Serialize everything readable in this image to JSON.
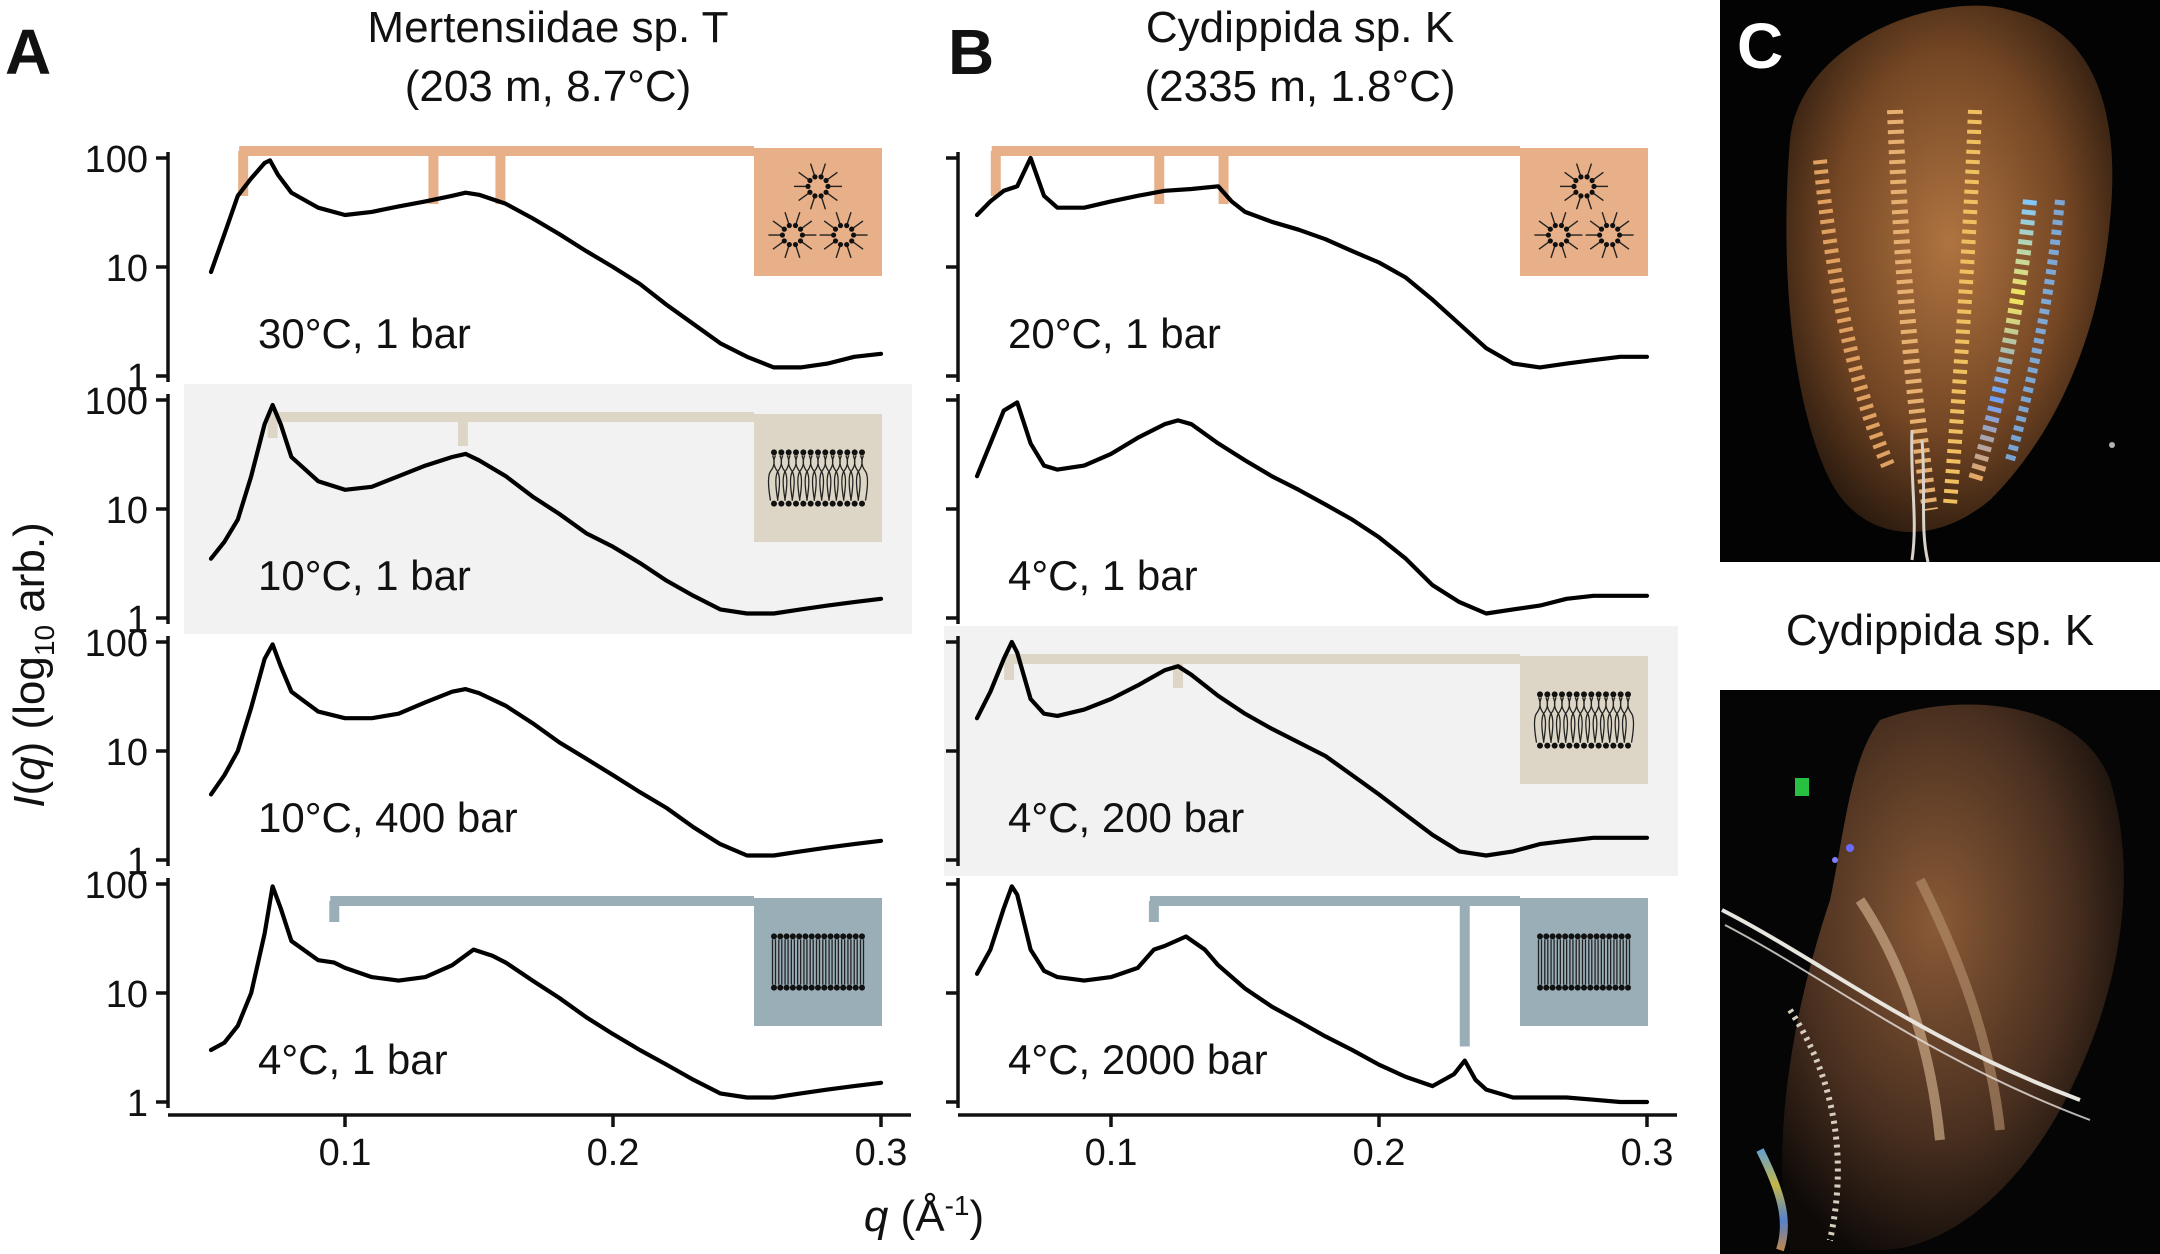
{
  "figure": {
    "panels": [
      {
        "letter": "A",
        "title_line1": "Mertensiidae sp. T",
        "title_line2": "(203 m, 8.7°C)"
      },
      {
        "letter": "B",
        "title_line1": "Cydippida sp. K",
        "title_line2": "(2335 m, 1.8°C)"
      },
      {
        "letter": "C",
        "photo_caption": "Cydippida sp. K"
      }
    ],
    "y_axis_label": {
      "italic": "I",
      "paren_q": "q",
      "log": "log",
      "sub": "10",
      "rest": "arb."
    },
    "x_axis_label": {
      "q": "q",
      "unit": "Å",
      "sup": "-1"
    },
    "colors": {
      "inverted_hexagonal": "#e8b088",
      "fluid_lamellar": "#ddd6c6",
      "gel_lamellar": "#9aaeb8",
      "highlight_band": "#f2f2f2",
      "curve": "#000000"
    }
  },
  "chart_data": [
    {
      "panel": "A",
      "type": "line",
      "xlabel": "q (Å-1)",
      "ylabel": "I(q) (log10 arb.)",
      "x_scale": "linear",
      "y_scale": "log",
      "xlim": [
        0.05,
        0.3
      ],
      "x_ticks": [
        0.1,
        0.2,
        0.3
      ],
      "x_tick_labels": [
        "0.1",
        "0.2",
        "0.3"
      ],
      "y_ticks": [
        1,
        10,
        100
      ],
      "y_tick_labels": [
        "1",
        "10",
        "100"
      ],
      "rows": [
        {
          "condition": "30°C, 1 bar",
          "phase": "inverted_hexagonal",
          "highlighted": false,
          "peak_markers_q": [
            0.062,
            0.133,
            0.158
          ],
          "x": [
            0.05,
            0.055,
            0.06,
            0.065,
            0.07,
            0.072,
            0.075,
            0.08,
            0.09,
            0.1,
            0.11,
            0.12,
            0.13,
            0.14,
            0.145,
            0.15,
            0.16,
            0.17,
            0.18,
            0.19,
            0.2,
            0.21,
            0.22,
            0.23,
            0.24,
            0.25,
            0.26,
            0.27,
            0.28,
            0.29,
            0.3
          ],
          "y": [
            9,
            20,
            45,
            65,
            90,
            95,
            70,
            48,
            35,
            30,
            32,
            36,
            40,
            45,
            48,
            46,
            38,
            28,
            20,
            14,
            10,
            7,
            4.5,
            3,
            2,
            1.5,
            1.2,
            1.2,
            1.3,
            1.5,
            1.6
          ]
        },
        {
          "condition": "10°C, 1 bar",
          "phase": "fluid_lamellar",
          "highlighted": true,
          "peak_markers_q": [
            0.073,
            0.144
          ],
          "x": [
            0.05,
            0.055,
            0.06,
            0.065,
            0.07,
            0.073,
            0.076,
            0.08,
            0.09,
            0.1,
            0.11,
            0.12,
            0.13,
            0.14,
            0.145,
            0.15,
            0.16,
            0.17,
            0.18,
            0.19,
            0.2,
            0.21,
            0.22,
            0.23,
            0.24,
            0.25,
            0.26,
            0.27,
            0.28,
            0.29,
            0.3
          ],
          "y": [
            3.5,
            5,
            8,
            20,
            60,
            90,
            60,
            30,
            18,
            15,
            16,
            20,
            25,
            30,
            32,
            28,
            20,
            13,
            9,
            6,
            4.5,
            3.2,
            2.2,
            1.6,
            1.2,
            1.1,
            1.1,
            1.2,
            1.3,
            1.4,
            1.5
          ]
        },
        {
          "condition": "10°C, 400 bar",
          "phase": "none",
          "highlighted": false,
          "peak_markers_q": [],
          "x": [
            0.05,
            0.055,
            0.06,
            0.065,
            0.07,
            0.073,
            0.076,
            0.08,
            0.09,
            0.1,
            0.11,
            0.12,
            0.13,
            0.14,
            0.145,
            0.15,
            0.16,
            0.17,
            0.18,
            0.19,
            0.2,
            0.21,
            0.22,
            0.23,
            0.24,
            0.25,
            0.26,
            0.27,
            0.28,
            0.29,
            0.3
          ],
          "y": [
            4,
            6,
            10,
            25,
            70,
            95,
            60,
            35,
            23,
            20,
            20,
            22,
            28,
            35,
            37,
            34,
            26,
            18,
            12,
            8.5,
            6,
            4.2,
            3,
            2,
            1.4,
            1.1,
            1.1,
            1.2,
            1.3,
            1.4,
            1.5
          ]
        },
        {
          "condition": "4°C, 1 bar",
          "phase": "gel_lamellar",
          "highlighted": false,
          "peak_markers_q": [
            0.096
          ],
          "x": [
            0.05,
            0.055,
            0.06,
            0.065,
            0.07,
            0.073,
            0.076,
            0.08,
            0.09,
            0.096,
            0.1,
            0.11,
            0.12,
            0.13,
            0.14,
            0.148,
            0.155,
            0.16,
            0.17,
            0.18,
            0.19,
            0.2,
            0.21,
            0.22,
            0.23,
            0.24,
            0.25,
            0.26,
            0.27,
            0.28,
            0.29,
            0.3
          ],
          "y": [
            3,
            3.5,
            5,
            10,
            35,
            95,
            60,
            30,
            20,
            19,
            17,
            14,
            13,
            14,
            18,
            25,
            22,
            19,
            13,
            9,
            6,
            4.2,
            3,
            2.2,
            1.6,
            1.2,
            1.1,
            1.1,
            1.2,
            1.3,
            1.4,
            1.5
          ]
        }
      ]
    },
    {
      "panel": "B",
      "type": "line",
      "xlabel": "q (Å-1)",
      "ylabel": "I(q) (log10 arb.)",
      "x_scale": "linear",
      "y_scale": "log",
      "xlim": [
        0.05,
        0.3
      ],
      "x_ticks": [
        0.1,
        0.2,
        0.3
      ],
      "x_tick_labels": [
        "0.1",
        "0.2",
        "0.3"
      ],
      "y_ticks": [
        1,
        10,
        100
      ],
      "y_tick_labels": [
        "1",
        "10",
        "100"
      ],
      "rows": [
        {
          "condition": "20°C, 1 bar",
          "phase": "inverted_hexagonal",
          "highlighted": false,
          "peak_markers_q": [
            0.057,
            0.118,
            0.142
          ],
          "x": [
            0.05,
            0.055,
            0.06,
            0.065,
            0.07,
            0.075,
            0.08,
            0.09,
            0.1,
            0.11,
            0.12,
            0.13,
            0.14,
            0.145,
            0.15,
            0.16,
            0.17,
            0.18,
            0.19,
            0.2,
            0.21,
            0.22,
            0.23,
            0.24,
            0.25,
            0.26,
            0.27,
            0.28,
            0.29,
            0.3
          ],
          "y": [
            30,
            40,
            50,
            55,
            100,
            45,
            35,
            35,
            40,
            45,
            50,
            52,
            55,
            40,
            32,
            26,
            22,
            18,
            14,
            11,
            8,
            5,
            3,
            1.8,
            1.3,
            1.2,
            1.3,
            1.4,
            1.5,
            1.5
          ]
        },
        {
          "condition": "4°C, 1 bar",
          "phase": "none",
          "highlighted": false,
          "peak_markers_q": [],
          "x": [
            0.05,
            0.055,
            0.06,
            0.065,
            0.07,
            0.075,
            0.08,
            0.09,
            0.1,
            0.11,
            0.12,
            0.125,
            0.13,
            0.14,
            0.15,
            0.16,
            0.17,
            0.18,
            0.19,
            0.2,
            0.21,
            0.22,
            0.23,
            0.24,
            0.25,
            0.26,
            0.27,
            0.28,
            0.29,
            0.3
          ],
          "y": [
            20,
            40,
            80,
            95,
            40,
            25,
            23,
            25,
            32,
            45,
            60,
            65,
            60,
            40,
            28,
            20,
            15,
            11,
            8,
            5.5,
            3.5,
            2,
            1.4,
            1.1,
            1.2,
            1.3,
            1.5,
            1.6,
            1.6,
            1.6
          ]
        },
        {
          "condition": "4°C, 200 bar",
          "phase": "fluid_lamellar",
          "highlighted": true,
          "peak_markers_q": [
            0.062,
            0.125
          ],
          "x": [
            0.05,
            0.055,
            0.06,
            0.063,
            0.065,
            0.07,
            0.075,
            0.08,
            0.09,
            0.1,
            0.11,
            0.12,
            0.125,
            0.13,
            0.14,
            0.15,
            0.16,
            0.17,
            0.18,
            0.19,
            0.2,
            0.21,
            0.22,
            0.23,
            0.24,
            0.25,
            0.26,
            0.27,
            0.28,
            0.29,
            0.3
          ],
          "y": [
            20,
            35,
            70,
            100,
            80,
            30,
            22,
            21,
            24,
            30,
            40,
            55,
            60,
            50,
            32,
            22,
            16,
            12,
            9,
            6,
            4,
            2.6,
            1.7,
            1.2,
            1.1,
            1.2,
            1.4,
            1.5,
            1.6,
            1.6,
            1.6
          ]
        },
        {
          "condition": "4°C, 2000 bar",
          "phase": "gel_lamellar",
          "highlighted": false,
          "peak_markers_q": [
            0.116,
            0.232
          ],
          "x": [
            0.05,
            0.055,
            0.06,
            0.063,
            0.065,
            0.07,
            0.075,
            0.08,
            0.09,
            0.1,
            0.11,
            0.116,
            0.12,
            0.128,
            0.135,
            0.14,
            0.15,
            0.16,
            0.17,
            0.18,
            0.19,
            0.2,
            0.21,
            0.22,
            0.228,
            0.232,
            0.236,
            0.24,
            0.25,
            0.26,
            0.27,
            0.28,
            0.29,
            0.3
          ],
          "y": [
            15,
            25,
            60,
            95,
            80,
            25,
            16,
            14,
            13,
            14,
            17,
            25,
            27,
            33,
            25,
            18,
            11,
            7.5,
            5.5,
            4,
            3,
            2.2,
            1.7,
            1.4,
            1.8,
            2.4,
            1.6,
            1.3,
            1.1,
            1.1,
            1.1,
            1.05,
            1.0,
            1.0
          ]
        }
      ]
    }
  ]
}
